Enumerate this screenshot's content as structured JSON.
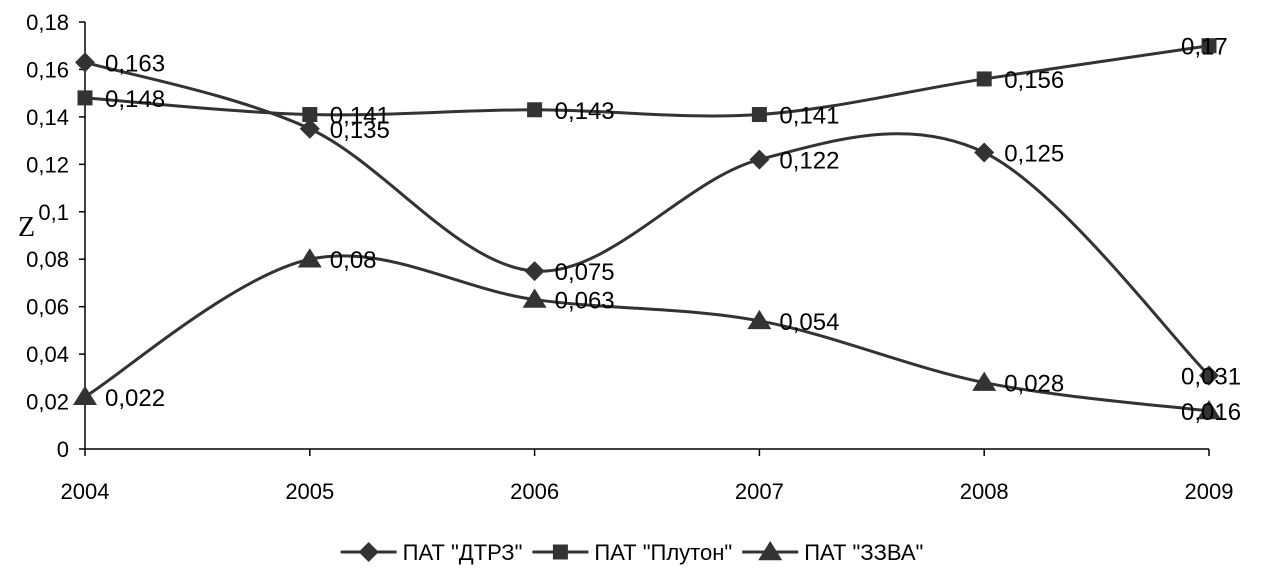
{
  "chart_data": {
    "type": "line",
    "title": "",
    "xlabel": "",
    "ylabel": "Z",
    "categories": [
      "2004",
      "2005",
      "2006",
      "2007",
      "2008",
      "2009"
    ],
    "ylim": [
      0,
      0.18
    ],
    "yticks": [
      "0",
      "0,02",
      "0,04",
      "0,06",
      "0,08",
      "0,1",
      "0,12",
      "0,14",
      "0,16",
      "0,18"
    ],
    "grid": false,
    "smooth": true,
    "legend_position": "bottom",
    "series": [
      {
        "name": "ПАТ \"ДТРЗ\"",
        "marker": "diamond",
        "color": "#333333",
        "values": [
          0.163,
          0.135,
          0.075,
          0.122,
          0.125,
          0.031
        ],
        "labels": [
          "0,163",
          "0,135",
          "0,075",
          "0,122",
          "0,125",
          "0,031"
        ]
      },
      {
        "name": "ПАТ \"Плутон\"",
        "marker": "square",
        "color": "#333333",
        "values": [
          0.148,
          0.141,
          0.143,
          0.141,
          0.156,
          0.17
        ],
        "labels": [
          "0,148",
          "0,141",
          "0,143",
          "0,141",
          "0,156",
          "0,17"
        ]
      },
      {
        "name": "ПАТ \"ЗЗВА\"",
        "marker": "triangle",
        "color": "#333333",
        "values": [
          0.022,
          0.08,
          0.063,
          0.054,
          0.028,
          0.016
        ],
        "labels": [
          "0,022",
          "0,08",
          "0,063",
          "0,054",
          "0,028",
          "0,016"
        ]
      }
    ]
  }
}
